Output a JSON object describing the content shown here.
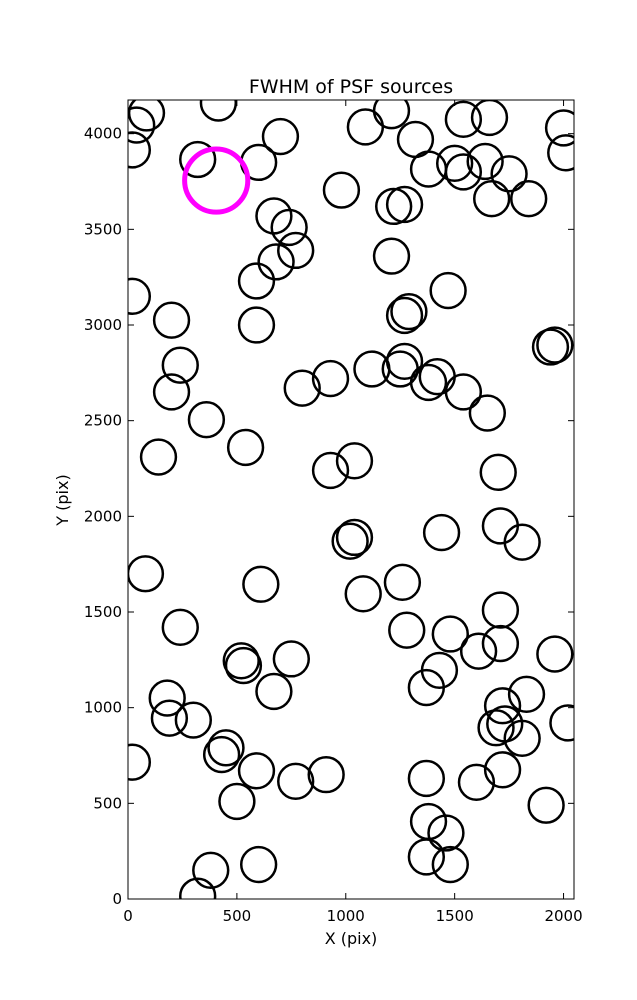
{
  "chart_data": {
    "type": "scatter",
    "title": "FWHM of PSF sources",
    "xlabel": "X (pix)",
    "ylabel": "Y (pix)",
    "xlim": [
      0,
      2048
    ],
    "ylim": [
      0,
      4176
    ],
    "xticks": [
      0,
      500,
      1000,
      1500,
      2000
    ],
    "yticks": [
      0,
      500,
      1000,
      1500,
      2000,
      2500,
      3000,
      3500,
      4000
    ],
    "grid": false,
    "marker": "circle",
    "radius_units": "pixels",
    "series": [
      {
        "color": "#000000",
        "points": [
          {
            "x": 85,
            "y": 4108,
            "r": 80
          },
          {
            "x": 40,
            "y": 4045,
            "r": 80
          },
          {
            "x": 20,
            "y": 3915,
            "r": 80
          },
          {
            "x": 415,
            "y": 4160,
            "r": 80
          },
          {
            "x": 320,
            "y": 3865,
            "r": 80
          },
          {
            "x": 600,
            "y": 3850,
            "r": 80
          },
          {
            "x": 700,
            "y": 3985,
            "r": 80
          },
          {
            "x": 980,
            "y": 3705,
            "r": 80
          },
          {
            "x": 1090,
            "y": 4035,
            "r": 80
          },
          {
            "x": 1210,
            "y": 4120,
            "r": 80
          },
          {
            "x": 1320,
            "y": 3970,
            "r": 80
          },
          {
            "x": 1380,
            "y": 3815,
            "r": 80
          },
          {
            "x": 1540,
            "y": 4075,
            "r": 80
          },
          {
            "x": 1660,
            "y": 4085,
            "r": 80
          },
          {
            "x": 1500,
            "y": 3845,
            "r": 80
          },
          {
            "x": 1540,
            "y": 3800,
            "r": 80
          },
          {
            "x": 1640,
            "y": 3855,
            "r": 80
          },
          {
            "x": 1750,
            "y": 3790,
            "r": 80
          },
          {
            "x": 1670,
            "y": 3660,
            "r": 80
          },
          {
            "x": 1840,
            "y": 3660,
            "r": 80
          },
          {
            "x": 2000,
            "y": 4030,
            "r": 80
          },
          {
            "x": 2010,
            "y": 3900,
            "r": 80
          },
          {
            "x": 1220,
            "y": 3620,
            "r": 80
          },
          {
            "x": 1270,
            "y": 3630,
            "r": 80
          },
          {
            "x": 670,
            "y": 3570,
            "r": 80
          },
          {
            "x": 740,
            "y": 3510,
            "r": 80
          },
          {
            "x": 770,
            "y": 3390,
            "r": 80
          },
          {
            "x": 680,
            "y": 3330,
            "r": 80
          },
          {
            "x": 590,
            "y": 3230,
            "r": 80
          },
          {
            "x": 1210,
            "y": 3360,
            "r": 80
          },
          {
            "x": 20,
            "y": 3150,
            "r": 80
          },
          {
            "x": 200,
            "y": 3025,
            "r": 80
          },
          {
            "x": 590,
            "y": 3000,
            "r": 80
          },
          {
            "x": 1270,
            "y": 3050,
            "r": 80
          },
          {
            "x": 1290,
            "y": 3070,
            "r": 80
          },
          {
            "x": 1470,
            "y": 3180,
            "r": 80
          },
          {
            "x": 1940,
            "y": 2885,
            "r": 80
          },
          {
            "x": 1960,
            "y": 2895,
            "r": 80
          },
          {
            "x": 240,
            "y": 2790,
            "r": 80
          },
          {
            "x": 200,
            "y": 2650,
            "r": 80
          },
          {
            "x": 360,
            "y": 2505,
            "r": 80
          },
          {
            "x": 800,
            "y": 2670,
            "r": 80
          },
          {
            "x": 930,
            "y": 2720,
            "r": 80
          },
          {
            "x": 1120,
            "y": 2770,
            "r": 80
          },
          {
            "x": 1270,
            "y": 2810,
            "r": 80
          },
          {
            "x": 1250,
            "y": 2770,
            "r": 80
          },
          {
            "x": 1380,
            "y": 2700,
            "r": 80
          },
          {
            "x": 1420,
            "y": 2730,
            "r": 80
          },
          {
            "x": 1540,
            "y": 2650,
            "r": 80
          },
          {
            "x": 1650,
            "y": 2540,
            "r": 80
          },
          {
            "x": 140,
            "y": 2310,
            "r": 80
          },
          {
            "x": 540,
            "y": 2360,
            "r": 80
          },
          {
            "x": 930,
            "y": 2240,
            "r": 80
          },
          {
            "x": 1040,
            "y": 2290,
            "r": 80
          },
          {
            "x": 1700,
            "y": 2230,
            "r": 80
          },
          {
            "x": 1440,
            "y": 1915,
            "r": 80
          },
          {
            "x": 1710,
            "y": 1950,
            "r": 80
          },
          {
            "x": 1810,
            "y": 1865,
            "r": 80
          },
          {
            "x": 1020,
            "y": 1870,
            "r": 80
          },
          {
            "x": 1040,
            "y": 1890,
            "r": 80
          },
          {
            "x": 80,
            "y": 1700,
            "r": 80
          },
          {
            "x": 610,
            "y": 1645,
            "r": 80
          },
          {
            "x": 1080,
            "y": 1595,
            "r": 80
          },
          {
            "x": 1260,
            "y": 1655,
            "r": 80
          },
          {
            "x": 1280,
            "y": 1405,
            "r": 80
          },
          {
            "x": 1710,
            "y": 1510,
            "r": 80
          },
          {
            "x": 1480,
            "y": 1385,
            "r": 80
          },
          {
            "x": 1610,
            "y": 1295,
            "r": 80
          },
          {
            "x": 1710,
            "y": 1335,
            "r": 80
          },
          {
            "x": 1960,
            "y": 1280,
            "r": 80
          },
          {
            "x": 240,
            "y": 1420,
            "r": 80
          },
          {
            "x": 520,
            "y": 1245,
            "r": 80
          },
          {
            "x": 530,
            "y": 1220,
            "r": 80
          },
          {
            "x": 750,
            "y": 1255,
            "r": 80
          },
          {
            "x": 670,
            "y": 1085,
            "r": 80
          },
          {
            "x": 1430,
            "y": 1195,
            "r": 80
          },
          {
            "x": 1370,
            "y": 1105,
            "r": 80
          },
          {
            "x": 1720,
            "y": 1010,
            "r": 80
          },
          {
            "x": 1830,
            "y": 1070,
            "r": 80
          },
          {
            "x": 1690,
            "y": 895,
            "r": 80
          },
          {
            "x": 1730,
            "y": 915,
            "r": 80
          },
          {
            "x": 1810,
            "y": 840,
            "r": 80
          },
          {
            "x": 2020,
            "y": 920,
            "r": 80
          },
          {
            "x": 180,
            "y": 1050,
            "r": 80
          },
          {
            "x": 190,
            "y": 945,
            "r": 80
          },
          {
            "x": 300,
            "y": 935,
            "r": 80
          },
          {
            "x": 450,
            "y": 790,
            "r": 80
          },
          {
            "x": 430,
            "y": 755,
            "r": 80
          },
          {
            "x": 20,
            "y": 715,
            "r": 80
          },
          {
            "x": 590,
            "y": 670,
            "r": 80
          },
          {
            "x": 770,
            "y": 615,
            "r": 80
          },
          {
            "x": 910,
            "y": 650,
            "r": 80
          },
          {
            "x": 500,
            "y": 510,
            "r": 80
          },
          {
            "x": 1370,
            "y": 630,
            "r": 80
          },
          {
            "x": 1600,
            "y": 610,
            "r": 80
          },
          {
            "x": 1720,
            "y": 675,
            "r": 80
          },
          {
            "x": 1920,
            "y": 490,
            "r": 80
          },
          {
            "x": 1380,
            "y": 405,
            "r": 80
          },
          {
            "x": 1460,
            "y": 345,
            "r": 80
          },
          {
            "x": 1370,
            "y": 220,
            "r": 80
          },
          {
            "x": 1480,
            "y": 180,
            "r": 80
          },
          {
            "x": 600,
            "y": 180,
            "r": 80
          },
          {
            "x": 380,
            "y": 150,
            "r": 80
          },
          {
            "x": 320,
            "y": 15,
            "r": 80
          }
        ]
      },
      {
        "color": "#ff00ff",
        "points": [
          {
            "x": 405,
            "y": 3755,
            "r": 145
          }
        ]
      }
    ]
  }
}
